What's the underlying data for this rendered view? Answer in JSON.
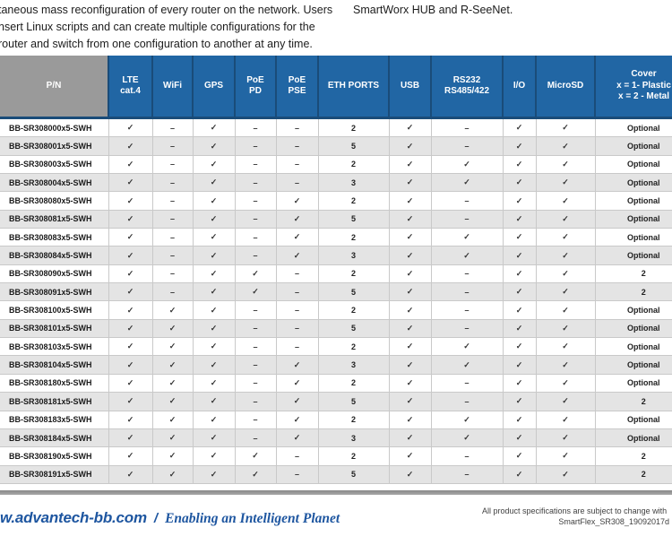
{
  "intro": {
    "left_lines": [
      "taneous mass reconfiguration of every router on the network. Users",
      "nsert Linux scripts and can create multiple configurations for the",
      "router and switch from one configuration to another at any time."
    ],
    "right_text": "SmartWorx HUB and R-SeeNet."
  },
  "table": {
    "columns": [
      {
        "key": "pn",
        "lines": [
          "P/N"
        ]
      },
      {
        "key": "lte",
        "lines": [
          "LTE",
          "cat.4"
        ]
      },
      {
        "key": "wifi",
        "lines": [
          "WiFi"
        ]
      },
      {
        "key": "gps",
        "lines": [
          "GPS"
        ]
      },
      {
        "key": "poe_pd",
        "lines": [
          "PoE",
          "PD"
        ]
      },
      {
        "key": "poe_pse",
        "lines": [
          "PoE",
          "PSE"
        ]
      },
      {
        "key": "eth",
        "lines": [
          "ETH PORTS"
        ]
      },
      {
        "key": "usb",
        "lines": [
          "USB"
        ]
      },
      {
        "key": "rs",
        "lines": [
          "RS232",
          "RS485/422"
        ]
      },
      {
        "key": "io",
        "lines": [
          "I/O"
        ]
      },
      {
        "key": "microsd",
        "lines": [
          "MicroSD"
        ]
      },
      {
        "key": "cover",
        "lines": [
          "Cover",
          "x = 1- Plastic",
          "x = 2 - Metal"
        ]
      }
    ],
    "symbols": {
      "check": "✓",
      "dash": "–"
    },
    "rows": [
      [
        "BB-SR308000x5-SWH",
        "check",
        "dash",
        "check",
        "dash",
        "dash",
        "2",
        "check",
        "dash",
        "check",
        "check",
        "Optional"
      ],
      [
        "BB-SR308001x5-SWH",
        "check",
        "dash",
        "check",
        "dash",
        "dash",
        "5",
        "check",
        "dash",
        "check",
        "check",
        "Optional"
      ],
      [
        "BB-SR308003x5-SWH",
        "check",
        "dash",
        "check",
        "dash",
        "dash",
        "2",
        "check",
        "check",
        "check",
        "check",
        "Optional"
      ],
      [
        "BB-SR308004x5-SWH",
        "check",
        "dash",
        "check",
        "dash",
        "dash",
        "3",
        "check",
        "check",
        "check",
        "check",
        "Optional"
      ],
      [
        "BB-SR308080x5-SWH",
        "check",
        "dash",
        "check",
        "dash",
        "check",
        "2",
        "check",
        "dash",
        "check",
        "check",
        "Optional"
      ],
      [
        "BB-SR308081x5-SWH",
        "check",
        "dash",
        "check",
        "dash",
        "check",
        "5",
        "check",
        "dash",
        "check",
        "check",
        "Optional"
      ],
      [
        "BB-SR308083x5-SWH",
        "check",
        "dash",
        "check",
        "dash",
        "check",
        "2",
        "check",
        "check",
        "check",
        "check",
        "Optional"
      ],
      [
        "BB-SR308084x5-SWH",
        "check",
        "dash",
        "check",
        "dash",
        "check",
        "3",
        "check",
        "check",
        "check",
        "check",
        "Optional"
      ],
      [
        "BB-SR308090x5-SWH",
        "check",
        "dash",
        "check",
        "check",
        "dash",
        "2",
        "check",
        "dash",
        "check",
        "check",
        "2"
      ],
      [
        "BB-SR308091x5-SWH",
        "check",
        "dash",
        "check",
        "check",
        "dash",
        "5",
        "check",
        "dash",
        "check",
        "check",
        "2"
      ],
      [
        "BB-SR308100x5-SWH",
        "check",
        "check",
        "check",
        "dash",
        "dash",
        "2",
        "check",
        "dash",
        "check",
        "check",
        "Optional"
      ],
      [
        "BB-SR308101x5-SWH",
        "check",
        "check",
        "check",
        "dash",
        "dash",
        "5",
        "check",
        "dash",
        "check",
        "check",
        "Optional"
      ],
      [
        "BB-SR308103x5-SWH",
        "check",
        "check",
        "check",
        "dash",
        "dash",
        "2",
        "check",
        "check",
        "check",
        "check",
        "Optional"
      ],
      [
        "BB-SR308104x5-SWH",
        "check",
        "check",
        "check",
        "dash",
        "check",
        "3",
        "check",
        "check",
        "check",
        "check",
        "Optional"
      ],
      [
        "BB-SR308180x5-SWH",
        "check",
        "check",
        "check",
        "dash",
        "check",
        "2",
        "check",
        "dash",
        "check",
        "check",
        "Optional"
      ],
      [
        "BB-SR308181x5-SWH",
        "check",
        "check",
        "check",
        "dash",
        "check",
        "5",
        "check",
        "dash",
        "check",
        "check",
        "2"
      ],
      [
        "BB-SR308183x5-SWH",
        "check",
        "check",
        "check",
        "dash",
        "check",
        "2",
        "check",
        "check",
        "check",
        "check",
        "Optional"
      ],
      [
        "BB-SR308184x5-SWH",
        "check",
        "check",
        "check",
        "dash",
        "check",
        "3",
        "check",
        "check",
        "check",
        "check",
        "Optional"
      ],
      [
        "BB-SR308190x5-SWH",
        "check",
        "check",
        "check",
        "check",
        "dash",
        "2",
        "check",
        "dash",
        "check",
        "check",
        "2"
      ],
      [
        "BB-SR308191x5-SWH",
        "check",
        "check",
        "check",
        "check",
        "dash",
        "5",
        "check",
        "dash",
        "check",
        "check",
        "2"
      ]
    ]
  },
  "footer": {
    "website": "w.advantech-bb.com",
    "separator": "/",
    "tagline": "Enabling an Intelligent Planet",
    "note_line1": "All product specifications are subject to change with",
    "note_line2": "SmartFlex_SR308_19092017d"
  },
  "colors": {
    "header_blue": "#2166a4",
    "header_gray": "#9a9a9a",
    "header_border": "#1a4c79",
    "row_alt": "#e4e4e4",
    "cell_border": "#c9c9c9",
    "brand_blue": "#1e56a0",
    "divider_gray": "#a8a8a8",
    "text_dark": "#1c1c1c"
  }
}
